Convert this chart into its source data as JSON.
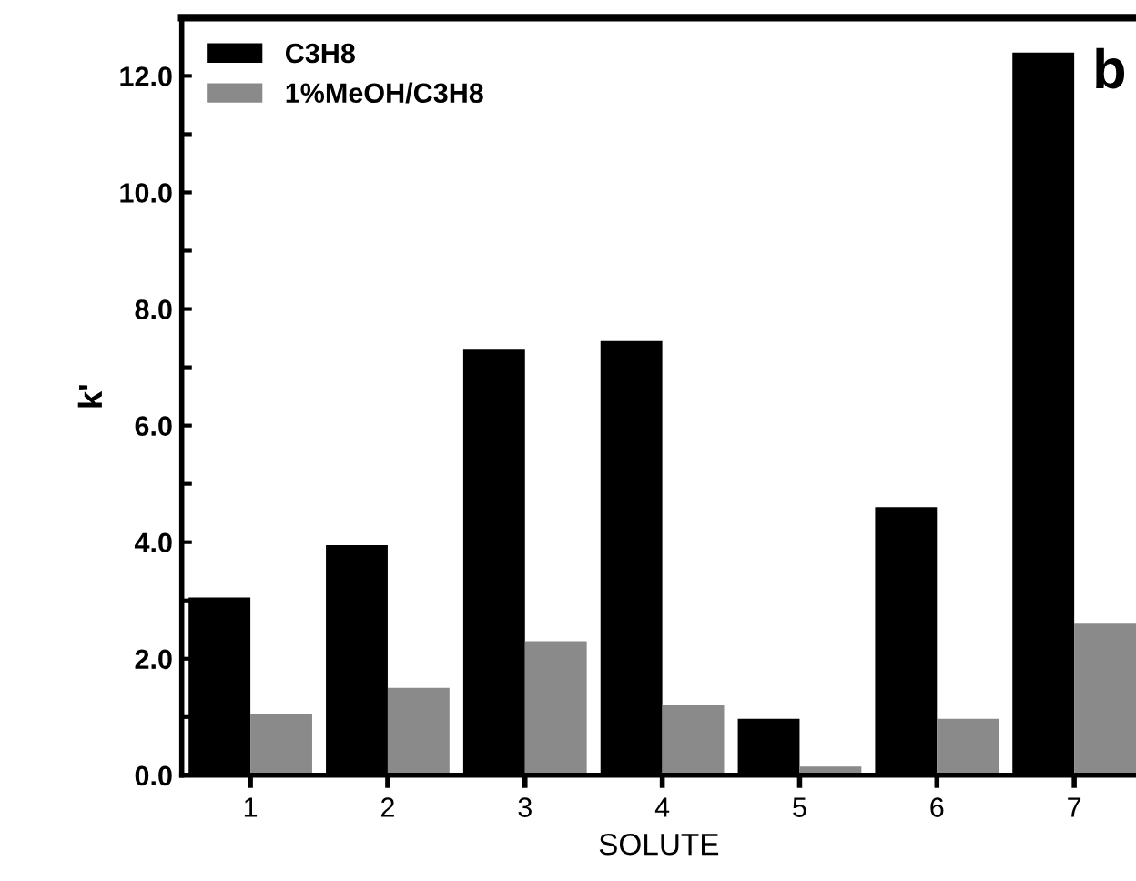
{
  "chart_data": {
    "type": "bar",
    "xlabel": "SOLUTE",
    "ylabel": "k'",
    "categories": [
      "1",
      "2",
      "3",
      "4",
      "5",
      "6",
      "7"
    ],
    "series": [
      {
        "name": "C3H8",
        "color": "#000000",
        "values": [
          3.05,
          3.95,
          7.3,
          7.45,
          0.97,
          4.6,
          12.4
        ]
      },
      {
        "name": "1%MeOH/C3H8",
        "color": "#8a8a8a",
        "values": [
          1.05,
          1.5,
          2.3,
          1.2,
          0.15,
          0.97,
          2.6
        ]
      }
    ],
    "ylim": [
      0,
      13
    ],
    "yticks": [
      {
        "value": 0,
        "label": "0.0"
      },
      {
        "value": 1,
        "label": null
      },
      {
        "value": 2,
        "label": "2.0"
      },
      {
        "value": 3,
        "label": null
      },
      {
        "value": 4,
        "label": "4.0"
      },
      {
        "value": 5,
        "label": null
      },
      {
        "value": 6,
        "label": "6.0"
      },
      {
        "value": 7,
        "label": null
      },
      {
        "value": 8,
        "label": "8.0"
      },
      {
        "value": 9,
        "label": null
      },
      {
        "value": 10,
        "label": "10.0"
      },
      {
        "value": 11,
        "label": null
      },
      {
        "value": 12,
        "label": "12.0"
      }
    ],
    "annotations": [
      "b"
    ],
    "legend": "top left",
    "grid": false
  }
}
